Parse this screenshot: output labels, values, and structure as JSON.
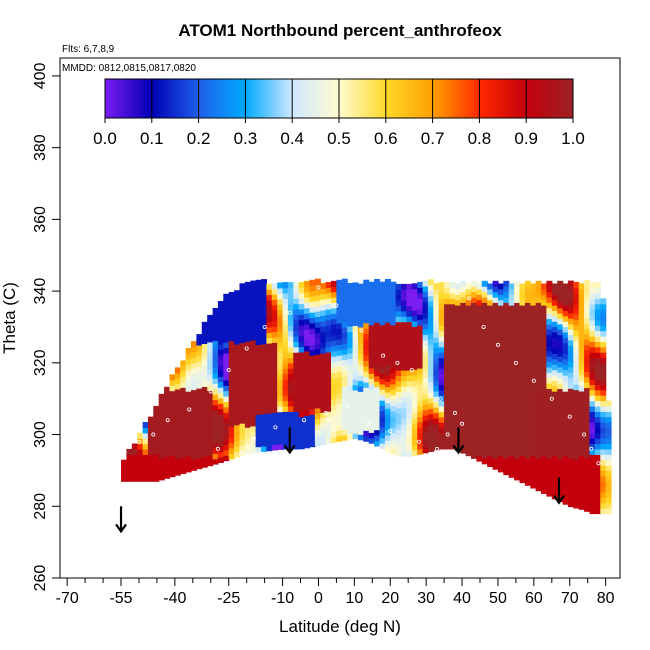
{
  "chart_data": {
    "type": "heatmap",
    "title": "ATOM1 Northbound percent_anthrofeox",
    "notes": {
      "flights": "Flts: 6,7,8,9",
      "dates": "MMDD: 0812,0815,0817,0820"
    },
    "xlabel": "Latitude (deg N)",
    "ylabel": "Theta (C)",
    "xlim": [
      -72,
      84
    ],
    "ylim": [
      260,
      405
    ],
    "x_ticks": [
      -70,
      -55,
      -40,
      -25,
      -10,
      0,
      10,
      20,
      30,
      40,
      50,
      60,
      70,
      80
    ],
    "x_minor_ticks": [
      -65,
      -60,
      -50,
      -45,
      -35,
      -30,
      -20,
      -15,
      -5,
      5,
      15,
      25,
      35,
      45,
      55,
      65,
      75
    ],
    "y_ticks": [
      260,
      280,
      300,
      320,
      340,
      360,
      380,
      400
    ],
    "colorbar": {
      "min": 0.0,
      "max": 1.0,
      "labels": [
        "0.0",
        "0.1",
        "0.2",
        "0.3",
        "0.4",
        "0.5",
        "0.6",
        "0.7",
        "0.8",
        "0.9",
        "1.0"
      ],
      "stops": [
        "#7a1cf2",
        "#0000b4",
        "#1f5fe8",
        "#00aaff",
        "#cfe8ff",
        "#fffbd0",
        "#ffd92a",
        "#ffa000",
        "#ff2a00",
        "#c4000c",
        "#9c2224"
      ]
    },
    "grid": {
      "lat_start": -55,
      "lat_step": 1.5,
      "theta_step": 1.5,
      "bottom": [
        [
          -55,
          287
        ],
        [
          -45,
          287
        ],
        [
          -35,
          290
        ],
        [
          -28,
          292
        ],
        [
          -22,
          294
        ],
        [
          -18,
          295
        ],
        [
          -10,
          296
        ],
        [
          -5,
          296
        ],
        [
          0,
          297
        ],
        [
          5,
          298
        ],
        [
          10,
          299
        ],
        [
          14,
          298
        ],
        [
          18,
          296
        ],
        [
          22,
          294
        ],
        [
          26,
          294
        ],
        [
          30,
          295
        ],
        [
          34,
          296
        ],
        [
          38,
          296
        ],
        [
          42,
          294
        ],
        [
          46,
          292
        ],
        [
          50,
          290
        ],
        [
          56,
          287
        ],
        [
          62,
          284
        ],
        [
          66,
          282
        ],
        [
          70,
          280
        ],
        [
          74,
          279
        ],
        [
          76,
          278
        ]
      ],
      "top": [
        [
          -55,
          291
        ],
        [
          -50,
          299
        ],
        [
          -45,
          308
        ],
        [
          -40,
          317
        ],
        [
          -35,
          325
        ],
        [
          -30,
          333
        ],
        [
          -26,
          338
        ],
        [
          -20,
          342
        ],
        [
          78,
          342
        ],
        [
          80,
          335
        ],
        [
          81,
          300
        ]
      ],
      "right_edge": 81
    },
    "regions": [
      {
        "lat": [
          -48,
          -30
        ],
        "theta": [
          290,
          312
        ],
        "value": 0.98
      },
      {
        "lat": [
          -25,
          -12
        ],
        "theta": [
          302,
          325
        ],
        "value": 0.97
      },
      {
        "lat": [
          -8,
          2
        ],
        "theta": [
          306,
          322
        ],
        "value": 0.95
      },
      {
        "lat": [
          34,
          62
        ],
        "theta": [
          292,
          336
        ],
        "value": 1.0
      },
      {
        "lat": [
          60,
          75
        ],
        "theta": [
          285,
          312
        ],
        "value": 0.99
      },
      {
        "lat": [
          14,
          28
        ],
        "theta": [
          318,
          330
        ],
        "value": 0.95
      },
      {
        "lat": [
          -55,
          78
        ],
        "theta": [
          278,
          293
        ],
        "value": 0.9
      },
      {
        "lat": [
          -40,
          -15
        ],
        "theta": [
          325,
          342
        ],
        "value": 0.12
      },
      {
        "lat": [
          5,
          20
        ],
        "theta": [
          330,
          342
        ],
        "value": 0.22
      },
      {
        "lat": [
          -18,
          -2
        ],
        "theta": [
          296,
          305
        ],
        "value": 0.15
      },
      {
        "lat": [
          6,
          16
        ],
        "theta": [
          300,
          312
        ],
        "value": 0.45
      }
    ],
    "sample_points": [
      [
        -50,
        298
      ],
      [
        -46,
        300
      ],
      [
        -42,
        304
      ],
      [
        -36,
        307
      ],
      [
        -30,
        312
      ],
      [
        -25,
        318
      ],
      [
        -20,
        324
      ],
      [
        -15,
        330
      ],
      [
        -8,
        334
      ],
      [
        0,
        341
      ],
      [
        5,
        336
      ],
      [
        12,
        329
      ],
      [
        18,
        322
      ],
      [
        22,
        320
      ],
      [
        26,
        318
      ],
      [
        30,
        315
      ],
      [
        34,
        310
      ],
      [
        38,
        306
      ],
      [
        42,
        338
      ],
      [
        46,
        330
      ],
      [
        50,
        325
      ],
      [
        55,
        320
      ],
      [
        60,
        315
      ],
      [
        65,
        310
      ],
      [
        70,
        305
      ],
      [
        74,
        300
      ],
      [
        76,
        296
      ],
      [
        78,
        292
      ],
      [
        -28,
        296
      ],
      [
        -18,
        299
      ],
      [
        -12,
        302
      ],
      [
        -4,
        304
      ],
      [
        2,
        306
      ],
      [
        8,
        308
      ],
      [
        14,
        303
      ],
      [
        20,
        301
      ],
      [
        28,
        298
      ],
      [
        33,
        296
      ],
      [
        36,
        300
      ],
      [
        40,
        303
      ]
    ],
    "arrows": [
      {
        "lat": -55,
        "theta": 277
      },
      {
        "lat": -8,
        "theta": 299
      },
      {
        "lat": 39,
        "theta": 299
      },
      {
        "lat": 67,
        "theta": 285
      }
    ]
  }
}
